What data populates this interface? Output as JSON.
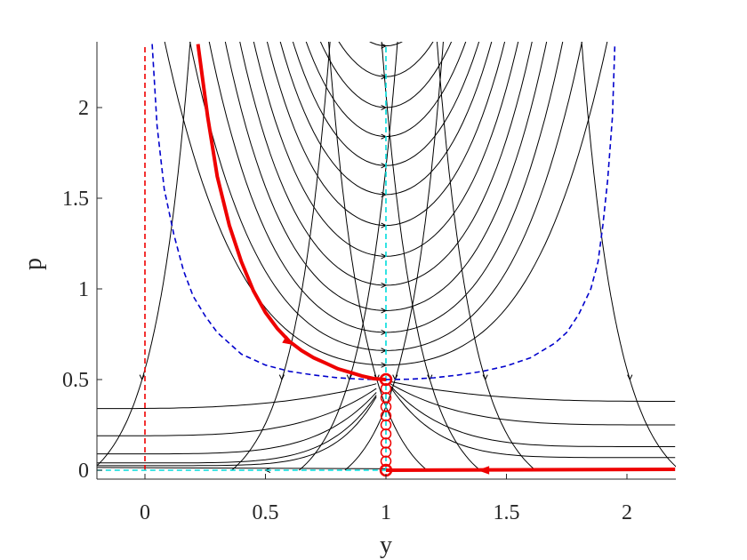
{
  "chart_data": {
    "type": "line",
    "title": "",
    "xlabel": "y",
    "ylabel": "p",
    "xlim": [
      -0.2,
      2.2
    ],
    "ylim": [
      -0.02,
      2.35
    ],
    "xticks": [
      0,
      0.5,
      1,
      1.5,
      2
    ],
    "xtick_labels": [
      "0",
      "0.5",
      "1",
      "1.5",
      "2"
    ],
    "yticks": [
      0,
      0.5,
      1,
      1.5,
      2
    ],
    "ytick_labels": [
      "0",
      "0.5",
      "1",
      "1.5",
      "2"
    ],
    "grid": false,
    "box": "left-bottom",
    "colors": {
      "streamline": "#000000",
      "nullcline_blue": "#0000cc",
      "nullcline_cyan": "#00dcdc",
      "red": "#ee0000"
    },
    "streamlines": {
      "color": "#000000",
      "description": "phase-plane trajectories of the field"
    },
    "nullclines": [
      {
        "name": "y = 0",
        "style": "dashed",
        "color": "#ee0000",
        "x": [
          0,
          0
        ],
        "y": [
          0,
          2.35
        ]
      },
      {
        "name": "y = 1",
        "style": "dashed",
        "color": "#00dcdc",
        "x": [
          1,
          1
        ],
        "y": [
          0,
          2.35
        ]
      },
      {
        "name": "p = 0",
        "style": "dashed",
        "color": "#00dcdc",
        "x": [
          -0.2,
          1
        ],
        "y": [
          0,
          0
        ]
      },
      {
        "name": "p = y/(2y-1) curve (left)",
        "style": "dashed",
        "color": "#0000cc",
        "x": [
          0.03,
          0.05,
          0.08,
          0.12,
          0.16,
          0.2,
          0.25,
          0.3,
          0.35,
          0.4,
          0.5,
          0.6,
          0.7,
          0.8,
          0.9,
          1.0
        ],
        "y": [
          2.35,
          1.9,
          1.55,
          1.3,
          1.1,
          0.96,
          0.85,
          0.76,
          0.7,
          0.64,
          0.58,
          0.545,
          0.525,
          0.51,
          0.502,
          0.5
        ]
      },
      {
        "name": "p curve (right)",
        "style": "dashed",
        "color": "#0000cc",
        "x": [
          1.0,
          1.1,
          1.2,
          1.3,
          1.4,
          1.5,
          1.6,
          1.7,
          1.75,
          1.8,
          1.85,
          1.88,
          1.9,
          1.92,
          1.94,
          1.95
        ],
        "y": [
          0.5,
          0.502,
          0.51,
          0.525,
          0.545,
          0.575,
          0.62,
          0.7,
          0.76,
          0.86,
          1.0,
          1.15,
          1.35,
          1.6,
          1.95,
          2.35
        ]
      }
    ],
    "optimal_path": {
      "color": "#ee0000",
      "segments": [
        {
          "x": [
            0.22,
            0.26,
            0.3,
            0.35,
            0.4,
            0.45,
            0.5,
            0.55,
            0.6,
            0.65,
            0.7,
            0.75,
            0.8,
            0.85,
            0.9,
            0.95,
            1.0
          ],
          "y": [
            2.35,
            1.95,
            1.62,
            1.35,
            1.15,
            0.99,
            0.87,
            0.78,
            0.71,
            0.66,
            0.62,
            0.59,
            0.56,
            0.54,
            0.52,
            0.505,
            0.5
          ]
        },
        {
          "x": [
            2.2,
            1.0
          ],
          "y": [
            0.005,
            0.0
          ]
        }
      ],
      "circles_x": 1.0,
      "circles_y": [
        0.0,
        0.05,
        0.1,
        0.15,
        0.2,
        0.25,
        0.3,
        0.35,
        0.4,
        0.45,
        0.5
      ]
    }
  }
}
